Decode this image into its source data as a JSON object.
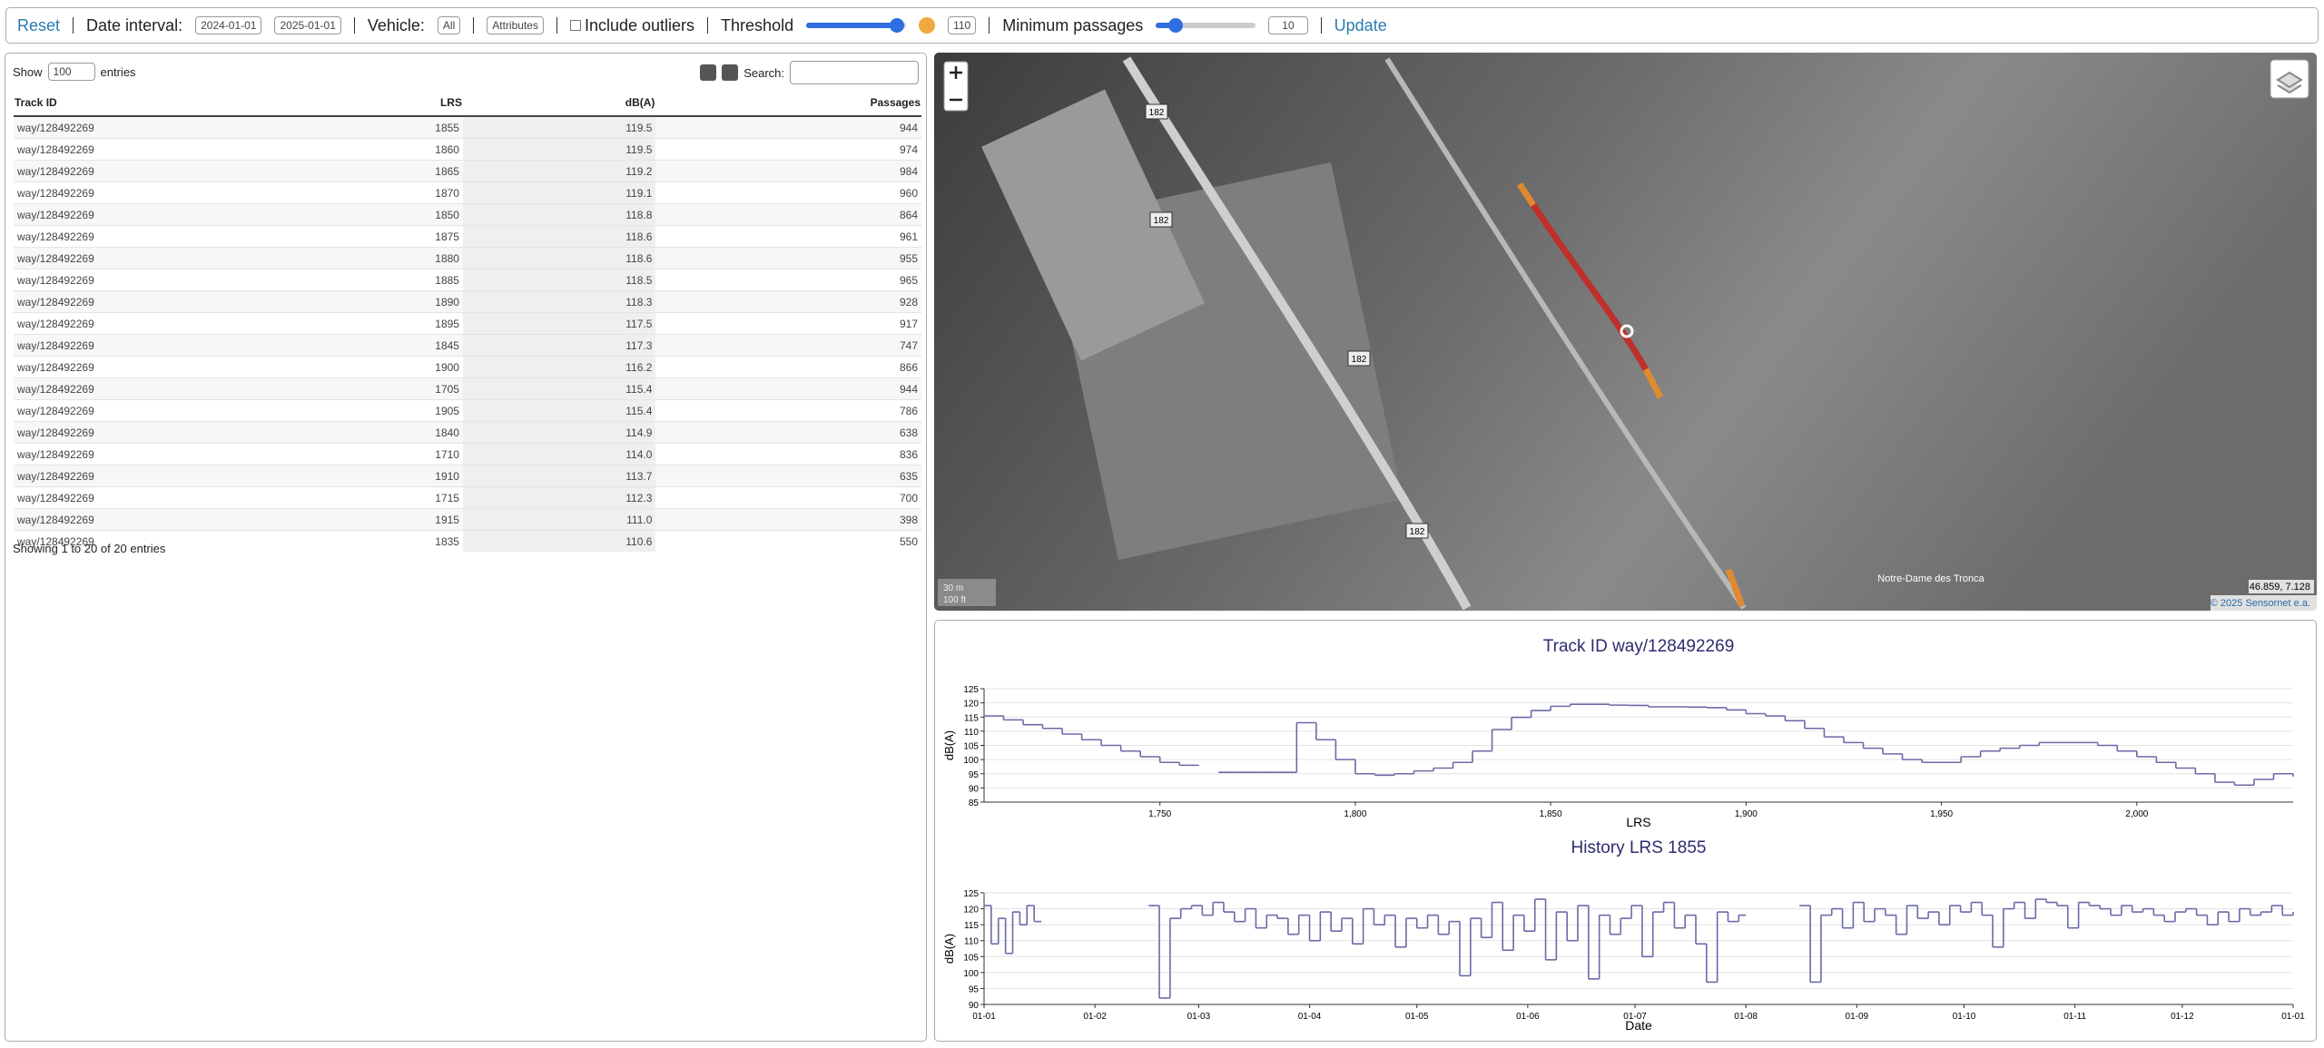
{
  "toolbar": {
    "reset": "Reset",
    "date_label": "Date interval:",
    "date_from": "2024-01-01",
    "date_to": "2025-01-01",
    "vehicle_label": "Vehicle:",
    "vehicle": "All",
    "attributes": "Attributes",
    "outliers": "Include outliers",
    "threshold_label": "Threshold",
    "threshold": "110",
    "passages_label": "Minimum passages",
    "passages": "10",
    "update": "Update"
  },
  "table": {
    "show": "Show",
    "page_length": "100",
    "entries": "entries",
    "search": "Search:",
    "columns": [
      "Track ID",
      "LRS",
      "dB(A)",
      "Passages"
    ],
    "rows": [
      [
        "way/128492269",
        "1855",
        "119.5",
        "944"
      ],
      [
        "way/128492269",
        "1860",
        "119.5",
        "974"
      ],
      [
        "way/128492269",
        "1865",
        "119.2",
        "984"
      ],
      [
        "way/128492269",
        "1870",
        "119.1",
        "960"
      ],
      [
        "way/128492269",
        "1850",
        "118.8",
        "864"
      ],
      [
        "way/128492269",
        "1875",
        "118.6",
        "961"
      ],
      [
        "way/128492269",
        "1880",
        "118.6",
        "955"
      ],
      [
        "way/128492269",
        "1885",
        "118.5",
        "965"
      ],
      [
        "way/128492269",
        "1890",
        "118.3",
        "928"
      ],
      [
        "way/128492269",
        "1895",
        "117.5",
        "917"
      ],
      [
        "way/128492269",
        "1845",
        "117.3",
        "747"
      ],
      [
        "way/128492269",
        "1900",
        "116.2",
        "866"
      ],
      [
        "way/128492269",
        "1705",
        "115.4",
        "944"
      ],
      [
        "way/128492269",
        "1905",
        "115.4",
        "786"
      ],
      [
        "way/128492269",
        "1840",
        "114.9",
        "638"
      ],
      [
        "way/128492269",
        "1710",
        "114.0",
        "836"
      ],
      [
        "way/128492269",
        "1910",
        "113.7",
        "635"
      ],
      [
        "way/128492269",
        "1715",
        "112.3",
        "700"
      ],
      [
        "way/128492269",
        "1915",
        "111.0",
        "398"
      ],
      [
        "way/128492269",
        "1835",
        "110.6",
        "550"
      ]
    ],
    "info": "Showing 1 to 20 of 20 entries"
  },
  "map": {
    "road_labels": [
      "182",
      "182",
      "182",
      "182"
    ],
    "place": "Notre-Dame des Tronca",
    "coords": "46.859, 7.128",
    "attribution": "© 2025 Sensornet e.a.",
    "scale_m": "30 m",
    "scale_ft": "100 ft"
  },
  "chart_data": [
    {
      "type": "line",
      "title": "Track ID way/128492269",
      "xlabel": "LRS",
      "ylabel": "dB(A)",
      "color": "#6a6aa8",
      "step": true,
      "grid": true,
      "x": [
        1705,
        1710,
        1715,
        1720,
        1725,
        1730,
        1735,
        1740,
        1745,
        1750,
        1755,
        1760,
        1765,
        1770,
        1775,
        1780,
        1785,
        1790,
        1795,
        1800,
        1805,
        1810,
        1815,
        1820,
        1825,
        1830,
        1835,
        1840,
        1845,
        1850,
        1855,
        1860,
        1865,
        1870,
        1875,
        1880,
        1885,
        1890,
        1895,
        1900,
        1905,
        1910,
        1915,
        1920,
        1925,
        1930,
        1935,
        1940,
        1945,
        1950,
        1955,
        1960,
        1965,
        1970,
        1975,
        1980,
        1985,
        1990,
        1995,
        2000,
        2005,
        2010,
        2015,
        2020,
        2025,
        2030,
        2035,
        2040
      ],
      "series": [
        {
          "values": [
            115.4,
            114.0,
            112.3,
            111,
            109,
            107,
            105,
            103,
            101,
            99,
            98,
            null,
            95.5,
            95.5,
            95.5,
            95.5,
            113,
            107,
            100,
            95,
            94.5,
            95,
            96,
            97,
            99,
            103,
            110.6,
            114.9,
            117.3,
            118.8,
            119.5,
            119.5,
            119.2,
            119.1,
            118.6,
            118.6,
            118.5,
            118.3,
            117.5,
            116.2,
            115.4,
            113.7,
            111.0,
            108,
            106,
            104,
            102,
            100,
            99,
            99,
            101,
            103,
            104,
            105,
            106,
            106,
            106,
            105,
            103,
            101,
            99,
            97,
            95,
            92,
            91,
            93,
            95,
            94
          ]
        }
      ],
      "xlim": [
        1705,
        2040
      ],
      "ylim": [
        85,
        125
      ],
      "xticks": [
        {
          "value": 1750,
          "label": "1,750"
        },
        {
          "value": 1800,
          "label": "1,800"
        },
        {
          "value": 1850,
          "label": "1,850"
        },
        {
          "value": 1900,
          "label": "1,900"
        },
        {
          "value": 1950,
          "label": "1,950"
        },
        {
          "value": 2000,
          "label": "2,000"
        }
      ],
      "yticks": [
        85,
        90,
        95,
        100,
        105,
        110,
        115,
        120,
        125
      ]
    },
    {
      "type": "line",
      "title": "History LRS 1855",
      "xlabel": "Date",
      "ylabel": "dB(A)",
      "color": "#6a6aa8",
      "step": true,
      "grid": true,
      "x": [
        0,
        2,
        4,
        6,
        8,
        10,
        12,
        14,
        16,
        46,
        49,
        52,
        55,
        58,
        61,
        64,
        67,
        70,
        73,
        76,
        79,
        82,
        85,
        88,
        91,
        94,
        97,
        100,
        103,
        106,
        109,
        112,
        115,
        118,
        121,
        124,
        127,
        130,
        133,
        136,
        139,
        142,
        145,
        148,
        151,
        154,
        157,
        160,
        163,
        166,
        169,
        172,
        175,
        178,
        181,
        184,
        187,
        190,
        193,
        196,
        199,
        202,
        205,
        208,
        211,
        213,
        228,
        231,
        234,
        237,
        240,
        243,
        246,
        249,
        252,
        255,
        258,
        261,
        264,
        267,
        270,
        273,
        276,
        279,
        282,
        285,
        288,
        291,
        294,
        297,
        300,
        303,
        306,
        309,
        312,
        315,
        318,
        321,
        324,
        327,
        330,
        333,
        336,
        339,
        342,
        345,
        348,
        351,
        354,
        357,
        360,
        363,
        366
      ],
      "series": [
        {
          "values": [
            121,
            109,
            117,
            106,
            119,
            115,
            121,
            116,
            null,
            121,
            92,
            117,
            120,
            121,
            118,
            122,
            119,
            116,
            120,
            114,
            118,
            117,
            112,
            118,
            110,
            119,
            113,
            117,
            109,
            120,
            115,
            118,
            108,
            117,
            114,
            118,
            112,
            116,
            99,
            117,
            111,
            122,
            107,
            118,
            113,
            123,
            104,
            119,
            110,
            121,
            98,
            118,
            112,
            117,
            121,
            105,
            119,
            122,
            114,
            118,
            109,
            97,
            119,
            116,
            118,
            null,
            121,
            97,
            118,
            120,
            114,
            122,
            116,
            120,
            118,
            112,
            121,
            117,
            119,
            115,
            121,
            119,
            122,
            118,
            108,
            120,
            122,
            117,
            123,
            122,
            121,
            114,
            122,
            121,
            120,
            118,
            121,
            119,
            120,
            118,
            116,
            119,
            120,
            118,
            115,
            119,
            116,
            120,
            118,
            119,
            121,
            118,
            119
          ]
        }
      ],
      "xlim": [
        0,
        366
      ],
      "ylim": [
        90,
        125
      ],
      "xticks": [
        {
          "value": 0,
          "label": "01-01"
        },
        {
          "value": 31,
          "label": "01-02"
        },
        {
          "value": 60,
          "label": "01-03"
        },
        {
          "value": 91,
          "label": "01-04"
        },
        {
          "value": 121,
          "label": "01-05"
        },
        {
          "value": 152,
          "label": "01-06"
        },
        {
          "value": 182,
          "label": "01-07"
        },
        {
          "value": 213,
          "label": "01-08"
        },
        {
          "value": 244,
          "label": "01-09"
        },
        {
          "value": 274,
          "label": "01-10"
        },
        {
          "value": 305,
          "label": "01-11"
        },
        {
          "value": 335,
          "label": "01-12"
        },
        {
          "value": 366,
          "label": "01-01"
        }
      ],
      "yticks": [
        90,
        95,
        100,
        105,
        110,
        115,
        120,
        125
      ]
    }
  ]
}
